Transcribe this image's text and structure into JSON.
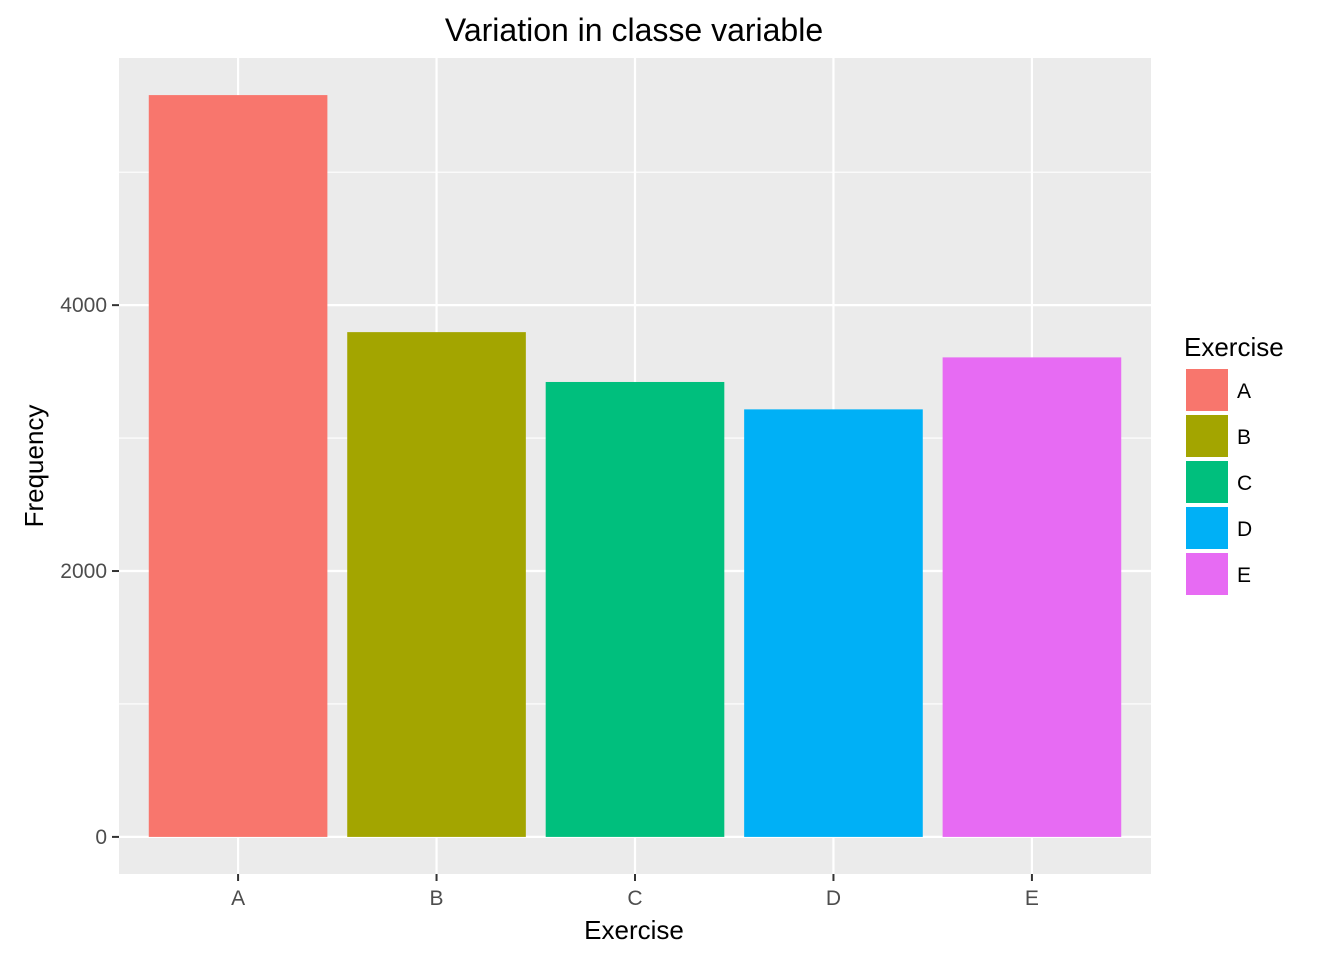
{
  "chart_data": {
    "type": "bar",
    "title": "Variation in classe variable",
    "xlabel": "Exercise",
    "ylabel": "Frequency",
    "categories": [
      "A",
      "B",
      "C",
      "D",
      "E"
    ],
    "values": [
      5580,
      3797,
      3422,
      3216,
      3607
    ],
    "colors": [
      "#F8766D",
      "#A3A500",
      "#00BF7D",
      "#00B0F6",
      "#E76BF3"
    ],
    "y_ticks": [
      0,
      2000,
      4000
    ],
    "y_minor_ticks": [
      1000,
      3000,
      5000
    ],
    "ylim": [
      -279,
      5859
    ],
    "grid": true,
    "legend": {
      "title": "Exercise",
      "labels": [
        "A",
        "B",
        "C",
        "D",
        "E"
      ],
      "position": "right"
    },
    "panel_background": "#EBEBEB"
  }
}
